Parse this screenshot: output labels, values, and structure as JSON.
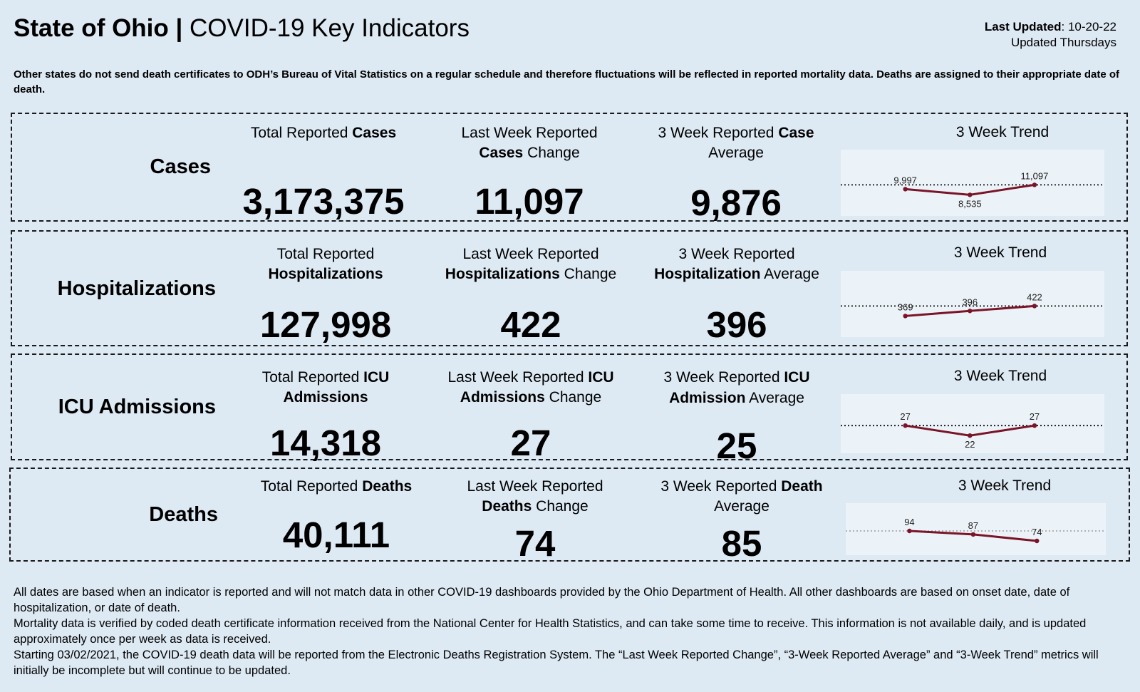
{
  "header": {
    "title_bold": "State of Ohio |",
    "title_rest": " COVID-19 Key Indicators",
    "last_updated_label": "Last Updated",
    "last_updated_value": ": 10-20-22",
    "schedule": "Updated Thursdays"
  },
  "note": "Other states do not send death certificates to ODH’s Bureau of Vital Statistics on a regular schedule and therefore fluctuations will be reflected in reported mortality data. Deaths are assigned to their appropriate date of death.",
  "panels": {
    "cases": {
      "label": "Cases",
      "total": {
        "pre": "Total Reported ",
        "bold": "Cases",
        "value": "3,173,375"
      },
      "change": {
        "line1": "Last Week Reported",
        "bold": "Cases",
        "post": " Change",
        "value": "11,097"
      },
      "avg": {
        "pre": "3 Week Reported ",
        "bold": "Case",
        "line2": "Average",
        "value": "9,876"
      },
      "trend_title": "3 Week Trend",
      "trend": {
        "values": [
          9997,
          8535,
          11097
        ],
        "labels": [
          "9,997",
          "8,535",
          "11,097"
        ]
      }
    },
    "hosp": {
      "label": "Hospitalizations",
      "total": {
        "line1": "Total Reported",
        "bold": "Hospitalizations",
        "value": "127,998"
      },
      "change": {
        "line1": "Last Week Reported",
        "bold": "Hospitalizations",
        "post": " Change",
        "value": "422"
      },
      "avg": {
        "line1": "3 Week Reported",
        "bold": "Hospitalization",
        "post": " Average",
        "value": "396"
      },
      "trend_title": "3 Week Trend",
      "trend": {
        "values": [
          369,
          396,
          422
        ],
        "labels": [
          "369",
          "396",
          "422"
        ]
      }
    },
    "icu": {
      "label": "ICU Admissions",
      "total": {
        "pre": "Total Reported ",
        "bold1": "ICU",
        "bold2": "Admissions",
        "value": "14,318"
      },
      "change": {
        "pre": "Last Week Reported ",
        "bold1": "ICU",
        "bold2": "Admissions",
        "post": " Change",
        "value": "27"
      },
      "avg": {
        "pre": "3 Week Reported ",
        "bold1": "ICU",
        "bold2": "Admission",
        "post": " Average",
        "value": "25"
      },
      "trend_title": "3 Week Trend",
      "trend": {
        "values": [
          27,
          22,
          27
        ],
        "labels": [
          "27",
          "22",
          "27"
        ]
      }
    },
    "deaths": {
      "label": "Deaths",
      "total": {
        "pre": "Total Reported ",
        "bold": "Deaths",
        "value": "40,111"
      },
      "change": {
        "line1": "Last Week Reported",
        "bold": "Deaths",
        "post": " Change",
        "value": "74"
      },
      "avg": {
        "pre": "3 Week Reported ",
        "bold": "Death",
        "line2": "Average",
        "value": "85"
      },
      "trend_title": "3 Week Trend",
      "trend": {
        "values": [
          94,
          87,
          74
        ],
        "labels": [
          "94",
          "87",
          "74"
        ]
      }
    }
  },
  "footer": [
    "All dates are based when an indicator is reported and will not match data in other COVID-19 dashboards provided by the Ohio Department of Health. All other dashboards are based on onset date, date of hospitalization, or date of death.",
    "Mortality data is verified by coded death certificate information received from the National Center for Health Statistics, and can take some time to receive. This information is not available daily, and is updated approximately once per week as data is received.",
    "Starting 03/02/2021, the COVID-19 death data will be reported from the Electronic Deaths Registration System. The “Last Week Reported Change”, “3-Week Reported Average” and “3-Week Trend” metrics will initially be incomplete but will continue to be updated."
  ],
  "colors": {
    "trend_line": "#7a1428",
    "background": "#dde9f3"
  }
}
